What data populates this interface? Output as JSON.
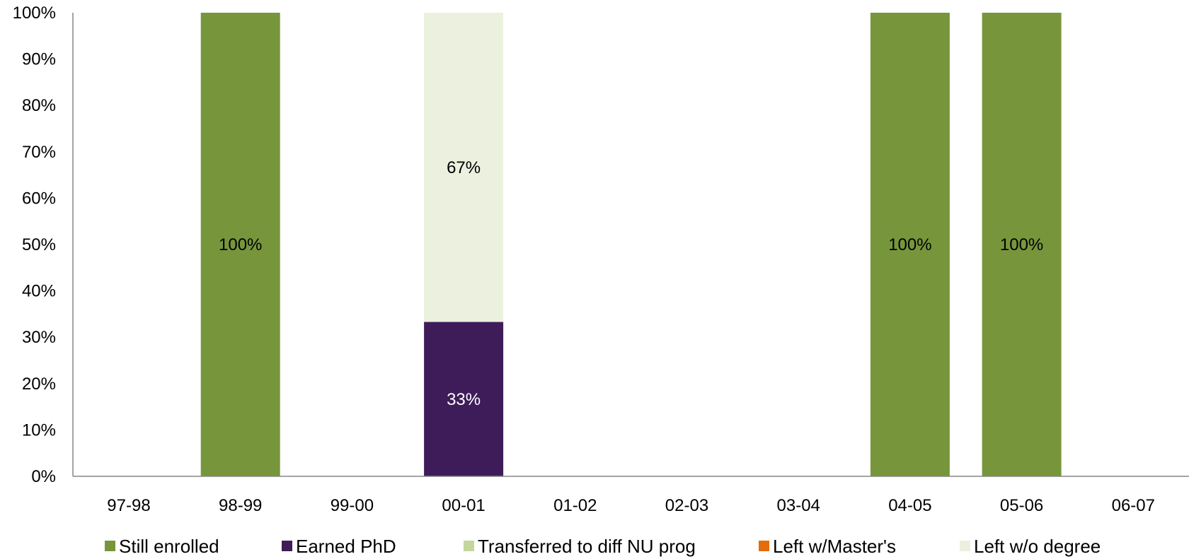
{
  "chart_data": {
    "type": "bar",
    "stacked": true,
    "categories": [
      "97-98",
      "98-99",
      "99-00",
      "00-01",
      "01-02",
      "02-03",
      "03-04",
      "04-05",
      "05-06",
      "06-07"
    ],
    "series": [
      {
        "name": "Still enrolled",
        "color": "#77963C",
        "label_color": "#000000",
        "values": [
          0,
          100,
          0,
          0,
          0,
          0,
          0,
          100,
          100,
          0
        ]
      },
      {
        "name": "Earned PhD",
        "color": "#3E1C5A",
        "label_color": "#FFFFFF",
        "values": [
          0,
          0,
          0,
          33.3,
          0,
          0,
          0,
          0,
          0,
          0
        ]
      },
      {
        "name": "Transferred to diff NU prog",
        "color": "#C3D69B",
        "label_color": "#000000",
        "values": [
          0,
          0,
          0,
          0,
          0,
          0,
          0,
          0,
          0,
          0
        ]
      },
      {
        "name": "Left w/Master's",
        "color": "#E46C0A",
        "label_color": "#000000",
        "values": [
          0,
          0,
          0,
          0,
          0,
          0,
          0,
          0,
          0,
          0
        ]
      },
      {
        "name": "Left w/o degree",
        "color": "#EBF1DE",
        "label_color": "#000000",
        "values": [
          0,
          0,
          0,
          66.7,
          0,
          0,
          0,
          0,
          0,
          0
        ]
      }
    ],
    "data_labels": [
      {
        "category": "98-99",
        "series": "Still enrolled",
        "text": "100%"
      },
      {
        "category": "00-01",
        "series": "Earned PhD",
        "text": "33%"
      },
      {
        "category": "00-01",
        "series": "Left w/o degree",
        "text": "67%"
      },
      {
        "category": "04-05",
        "series": "Still enrolled",
        "text": "100%"
      },
      {
        "category": "05-06",
        "series": "Still enrolled",
        "text": "100%"
      }
    ],
    "y_ticks": [
      "0%",
      "10%",
      "20%",
      "30%",
      "40%",
      "50%",
      "60%",
      "70%",
      "80%",
      "90%",
      "100%"
    ],
    "ylim": [
      0,
      100
    ],
    "title": "",
    "xlabel": "",
    "ylabel": "",
    "grid": false,
    "legend_position": "bottom"
  }
}
